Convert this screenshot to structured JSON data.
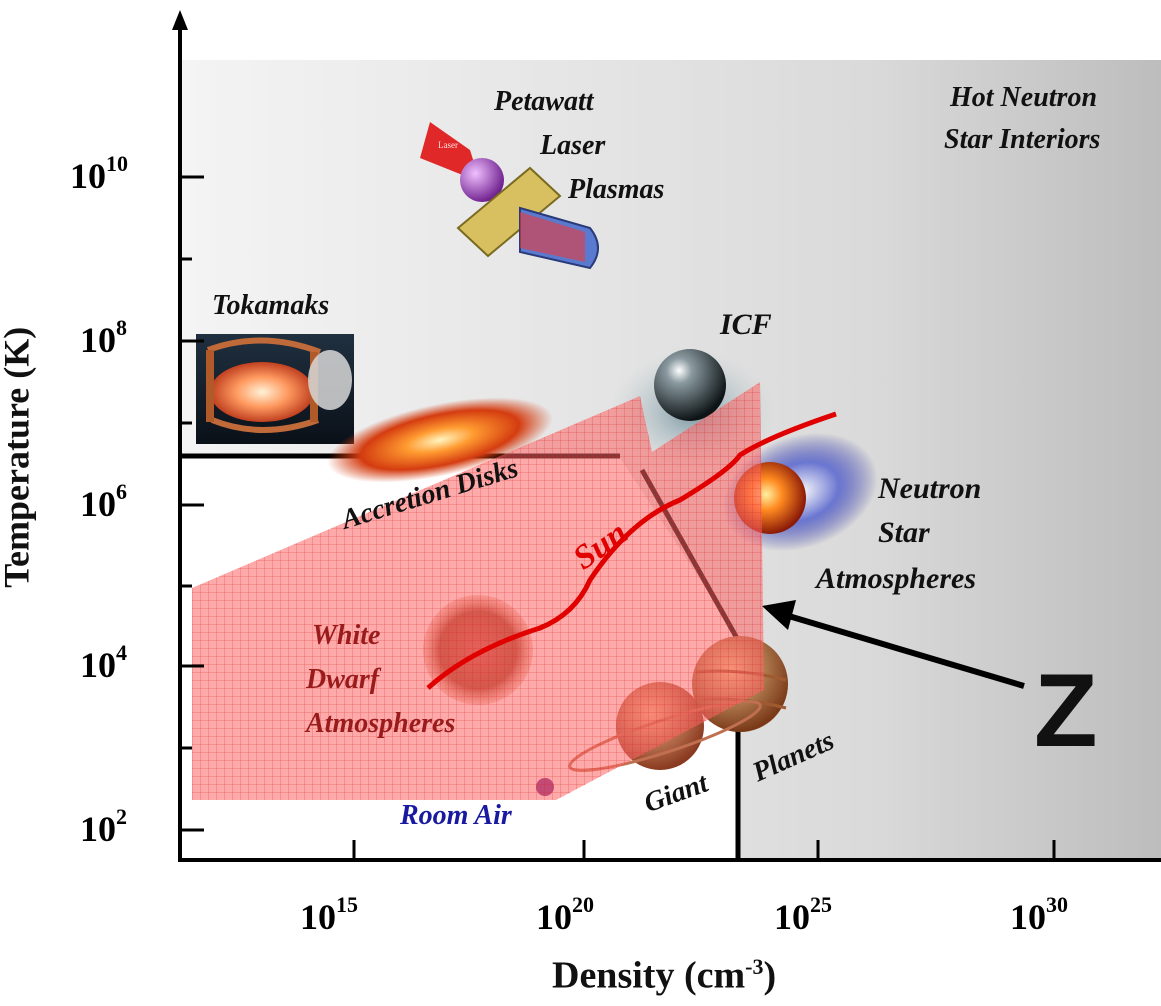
{
  "axes": {
    "y_label": "Temperature (K)",
    "x_label_base": "Density (cm",
    "x_label_exp": "-3",
    "x_label_close": ")",
    "y_ticks": [
      {
        "base": "10",
        "exp": "10"
      },
      {
        "base": "10",
        "exp": "8"
      },
      {
        "base": "10",
        "exp": "6"
      },
      {
        "base": "10",
        "exp": "4"
      },
      {
        "base": "10",
        "exp": "2"
      }
    ],
    "x_ticks": [
      {
        "base": "10",
        "exp": "15"
      },
      {
        "base": "10",
        "exp": "20"
      },
      {
        "base": "10",
        "exp": "25"
      },
      {
        "base": "10",
        "exp": "30"
      }
    ]
  },
  "regions": {
    "petawatt": [
      "Petawatt",
      "Laser",
      "Plasmas"
    ],
    "hot_neutron": [
      "Hot Neutron",
      "Star Interiors"
    ],
    "tokamaks": "Tokamaks",
    "icf": "ICF",
    "neutron_star": [
      "Neutron",
      "Star",
      "Atmospheres"
    ],
    "accretion": "Accretion Disks",
    "sun": "Sun",
    "white_dwarf": [
      "White",
      "Dwarf",
      "Atmospheres"
    ],
    "giant": "Giant",
    "planets": "Planets",
    "room_air": "Room Air",
    "z_label": "Z",
    "laser_tag": "Laser"
  },
  "colors": {
    "z_region": "#ff3b3b",
    "sun_curve": "#e00000",
    "room_air": "#1a1aa0",
    "room_air_dot": "#7a2a8a"
  }
}
